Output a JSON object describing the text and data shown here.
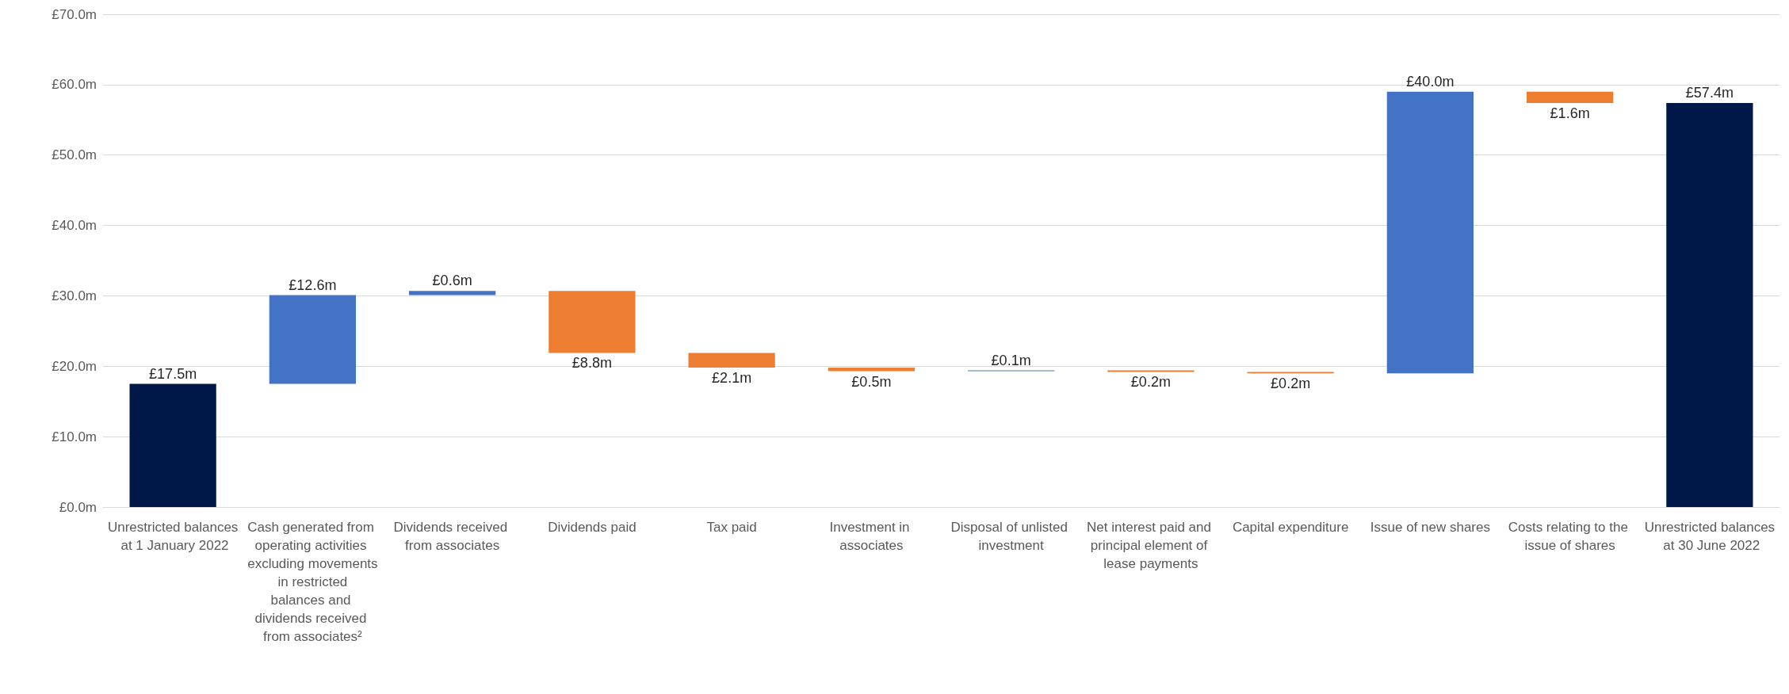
{
  "chart_data": {
    "type": "bar",
    "categories": [
      "Unrestricted balances at 1 January 2022",
      "Cash generated from operating activities excluding movements in restricted balances and dividends received from associates²",
      "Dividends received from associates",
      "Dividends paid",
      "Tax paid",
      "Investment in associates",
      "Disposal of unlisted investment",
      "Net interest paid and principal element of lease payments",
      "Capital expenditure",
      "Issue of new shares",
      "Costs relating to the issue of shares",
      "Unrestricted balances at 30 June 2022"
    ],
    "values": [
      17.5,
      12.6,
      0.6,
      8.8,
      2.1,
      0.5,
      0.1,
      0.2,
      0.2,
      40.0,
      1.6,
      57.4
    ],
    "base": [
      0,
      17.5,
      30.1,
      21.9,
      19.8,
      19.3,
      19.3,
      19.2,
      19.0,
      19.0,
      57.4,
      0
    ],
    "colors": [
      "#001848",
      "#4472c4",
      "#4472c4",
      "#ed7d31",
      "#ed7d31",
      "#ed7d31",
      "#4472c4",
      "#ed7d31",
      "#ed7d31",
      "#4472c4",
      "#ed7d31",
      "#001848"
    ],
    "value_labels": [
      "£17.5m",
      "£12.6m",
      "£0.6m",
      "£8.8m",
      "£2.1m",
      "£0.5m",
      "£0.1m",
      "£0.2m",
      "£0.2m",
      "£40.0m",
      "£1.6m",
      "£57.4m"
    ],
    "ylim": [
      0,
      70
    ],
    "yticks": [
      {
        "value": 0,
        "label": "£0.0m"
      },
      {
        "value": 10,
        "label": "£10.0m"
      },
      {
        "value": 20,
        "label": "£20.0m"
      },
      {
        "value": 30,
        "label": "£30.0m"
      },
      {
        "value": 40,
        "label": "£40.0m"
      },
      {
        "value": 50,
        "label": "£50.0m"
      },
      {
        "value": 60,
        "label": "£60.0m"
      },
      {
        "value": 70,
        "label": "£70.0m"
      }
    ],
    "grid": "y"
  }
}
